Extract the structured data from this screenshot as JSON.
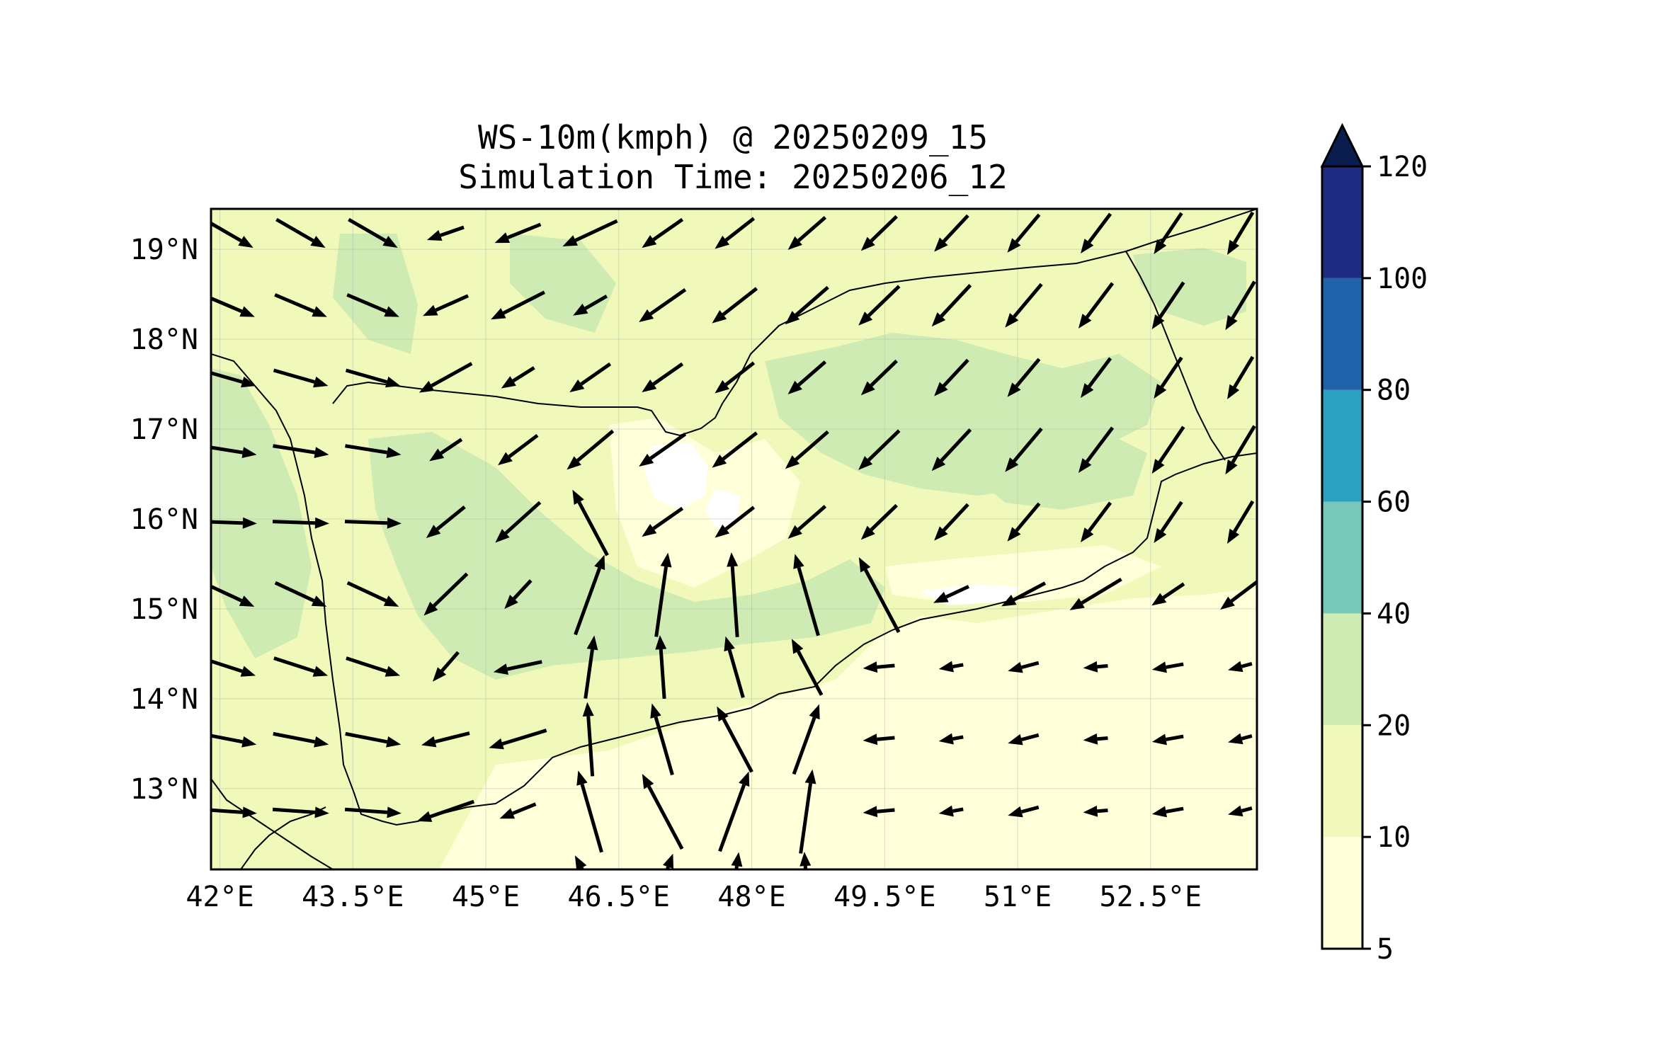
{
  "title": {
    "line1": "WS-10m(kmph) @ 20250209_15",
    "line2": "Simulation Time: 20250206_12"
  },
  "axes": {
    "x_ticks": [
      {
        "value": 42.0,
        "label": "42°E"
      },
      {
        "value": 43.5,
        "label": "43.5°E"
      },
      {
        "value": 45.0,
        "label": "45°E"
      },
      {
        "value": 46.5,
        "label": "46.5°E"
      },
      {
        "value": 48.0,
        "label": "48°E"
      },
      {
        "value": 49.5,
        "label": "49.5°E"
      },
      {
        "value": 51.0,
        "label": "51°E"
      },
      {
        "value": 52.5,
        "label": "52.5°E"
      }
    ],
    "y_ticks": [
      {
        "value": 13,
        "label": "13°N"
      },
      {
        "value": 14,
        "label": "14°N"
      },
      {
        "value": 15,
        "label": "15°N"
      },
      {
        "value": 16,
        "label": "16°N"
      },
      {
        "value": 17,
        "label": "17°N"
      },
      {
        "value": 18,
        "label": "18°N"
      },
      {
        "value": 19,
        "label": "19°N"
      }
    ],
    "lon_range": [
      41.9,
      53.7
    ],
    "lat_range": [
      12.1,
      19.45
    ],
    "grid": true
  },
  "colorbar": {
    "levels": [
      "5",
      "10",
      "20",
      "40",
      "60",
      "80",
      "100",
      "120"
    ],
    "colors": [
      "#ffffd9",
      "#f0f9b9",
      "#cfebb4",
      "#76c8b8",
      "#2ca0c1",
      "#2062aa",
      "#1e2c83",
      "#0b1d4f"
    ],
    "extend": "max"
  },
  "colors": {
    "land_base": "#f0f9b9",
    "band_light": "#ffffd9",
    "band_green": "#cfebb4",
    "calm": "#ffffff",
    "coast": "#000000",
    "arrow": "#000000"
  }
}
